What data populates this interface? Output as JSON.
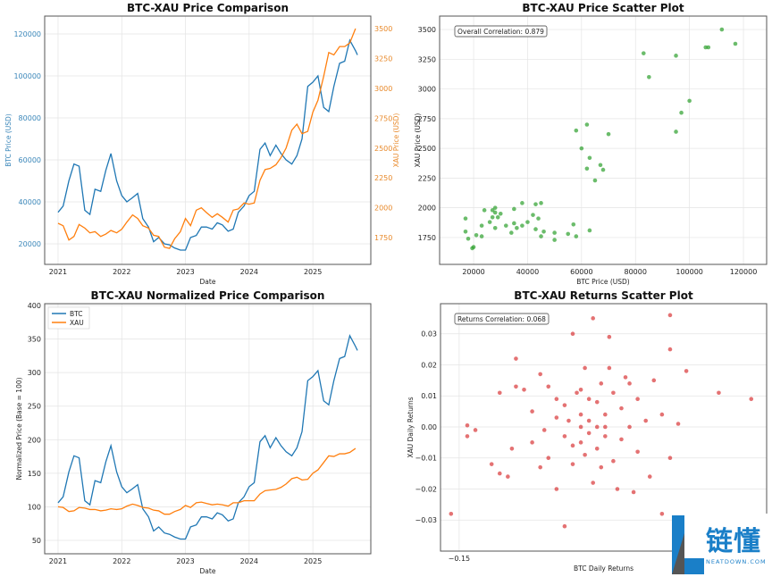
{
  "chart_data": [
    {
      "type": "line",
      "title": "BTC-XAU Price Comparison",
      "xlabel": "Date",
      "ylabel": "BTC Price (USD)",
      "y2label": "XAU Price (USD)",
      "xlim": [
        2020.79,
        2025.91
      ],
      "ylim": [
        10200,
        128500
      ],
      "y2lim": [
        1526,
        3605
      ],
      "grid": true,
      "xticks": [
        2021,
        2022,
        2023,
        2024,
        2025
      ],
      "yticks": [
        20000,
        40000,
        60000,
        80000,
        100000,
        120000
      ],
      "y2ticks": [
        1750,
        2000,
        2250,
        2500,
        2750,
        3000,
        3250,
        3500
      ],
      "colors": {
        "btc": "#1f77b4",
        "xau": "#ff7f0e"
      },
      "series": [
        {
          "key": "btc",
          "axis": "left",
          "x": [
            2021.0,
            2021.08,
            2021.17,
            2021.25,
            2021.33,
            2021.42,
            2021.5,
            2021.58,
            2021.67,
            2021.75,
            2021.83,
            2021.92,
            2022.0,
            2022.08,
            2022.17,
            2022.25,
            2022.33,
            2022.42,
            2022.5,
            2022.58,
            2022.67,
            2022.75,
            2022.83,
            2022.92,
            2023.0,
            2023.08,
            2023.17,
            2023.25,
            2023.33,
            2023.42,
            2023.5,
            2023.58,
            2023.67,
            2023.75,
            2023.83,
            2023.92,
            2024.0,
            2024.08,
            2024.17,
            2024.25,
            2024.33,
            2024.42,
            2024.5,
            2024.58,
            2024.67,
            2024.75,
            2024.83,
            2024.92,
            2025.0,
            2025.08,
            2025.17,
            2025.25,
            2025.33,
            2025.42,
            2025.5,
            2025.58,
            2025.67,
            2025.7
          ],
          "values": [
            35000,
            38000,
            50000,
            58000,
            57000,
            36000,
            34000,
            46000,
            45000,
            55000,
            63000,
            50000,
            43000,
            40000,
            42000,
            44000,
            32000,
            28000,
            21000,
            23000,
            20000,
            19500,
            18000,
            17000,
            17000,
            23000,
            24000,
            28000,
            28000,
            27000,
            30000,
            29000,
            26000,
            27000,
            35000,
            38000,
            43000,
            45000,
            65000,
            68000,
            62000,
            67000,
            63000,
            60000,
            58000,
            62000,
            70000,
            95000,
            97000,
            100000,
            85000,
            83000,
            95000,
            106000,
            107000,
            117000,
            112000,
            110000
          ]
        },
        {
          "key": "xau",
          "axis": "right",
          "x": [
            2021.0,
            2021.08,
            2021.17,
            2021.25,
            2021.33,
            2021.42,
            2021.5,
            2021.58,
            2021.67,
            2021.75,
            2021.83,
            2021.92,
            2022.0,
            2022.08,
            2022.17,
            2022.25,
            2022.33,
            2022.42,
            2022.5,
            2022.58,
            2022.67,
            2022.75,
            2022.83,
            2022.92,
            2023.0,
            2023.08,
            2023.17,
            2023.25,
            2023.33,
            2023.42,
            2023.5,
            2023.58,
            2023.67,
            2023.75,
            2023.83,
            2023.92,
            2024.0,
            2024.08,
            2024.17,
            2024.25,
            2024.33,
            2024.42,
            2024.5,
            2024.58,
            2024.67,
            2024.75,
            2024.83,
            2024.92,
            2025.0,
            2025.08,
            2025.17,
            2025.25,
            2025.33,
            2025.42,
            2025.5,
            2025.58,
            2025.67
          ],
          "values": [
            1870,
            1850,
            1730,
            1760,
            1860,
            1830,
            1790,
            1800,
            1760,
            1780,
            1810,
            1790,
            1820,
            1880,
            1940,
            1910,
            1850,
            1830,
            1770,
            1760,
            1670,
            1660,
            1740,
            1800,
            1910,
            1850,
            1980,
            2000,
            1960,
            1920,
            1950,
            1920,
            1880,
            1980,
            1990,
            2040,
            2030,
            2040,
            2230,
            2320,
            2330,
            2360,
            2420,
            2500,
            2650,
            2700,
            2620,
            2640,
            2800,
            2900,
            3100,
            3300,
            3280,
            3350,
            3350,
            3380,
            3500
          ]
        }
      ]
    },
    {
      "type": "scatter",
      "title": "BTC-XAU Price Scatter Plot",
      "xlabel": "BTC Price (USD)",
      "ylabel": "XAU Price (USD)",
      "annotation": "Overall Correlation: 0.879",
      "xlim": [
        7400,
        128600
      ],
      "ylim": [
        1524,
        3613
      ],
      "grid": true,
      "color": "#2ca02c",
      "xticks": [
        20000,
        40000,
        60000,
        80000,
        100000,
        120000
      ],
      "yticks": [
        1750,
        2000,
        2250,
        2500,
        2750,
        3000,
        3250,
        3500
      ],
      "points": [
        [
          35000,
          1870
        ],
        [
          38000,
          1850
        ],
        [
          50000,
          1730
        ],
        [
          58000,
          1760
        ],
        [
          57000,
          1860
        ],
        [
          36000,
          1830
        ],
        [
          34000,
          1790
        ],
        [
          46000,
          1800
        ],
        [
          45000,
          1760
        ],
        [
          55000,
          1780
        ],
        [
          63000,
          1810
        ],
        [
          50000,
          1790
        ],
        [
          43000,
          1820
        ],
        [
          40000,
          1880
        ],
        [
          42000,
          1940
        ],
        [
          44000,
          1910
        ],
        [
          32000,
          1850
        ],
        [
          28000,
          1830
        ],
        [
          21000,
          1770
        ],
        [
          23000,
          1760
        ],
        [
          20000,
          1670
        ],
        [
          19500,
          1660
        ],
        [
          18000,
          1740
        ],
        [
          17000,
          1800
        ],
        [
          17000,
          1910
        ],
        [
          23000,
          1850
        ],
        [
          24000,
          1980
        ],
        [
          28000,
          2000
        ],
        [
          28000,
          1960
        ],
        [
          27000,
          1920
        ],
        [
          30000,
          1950
        ],
        [
          29000,
          1920
        ],
        [
          26000,
          1880
        ],
        [
          27000,
          1980
        ],
        [
          35000,
          1990
        ],
        [
          38000,
          2040
        ],
        [
          43000,
          2030
        ],
        [
          45000,
          2040
        ],
        [
          65000,
          2230
        ],
        [
          68000,
          2320
        ],
        [
          62000,
          2330
        ],
        [
          67000,
          2360
        ],
        [
          63000,
          2420
        ],
        [
          60000,
          2500
        ],
        [
          58000,
          2650
        ],
        [
          62000,
          2700
        ],
        [
          70000,
          2620
        ],
        [
          95000,
          2640
        ],
        [
          97000,
          2800
        ],
        [
          100000,
          2900
        ],
        [
          85000,
          3100
        ],
        [
          83000,
          3300
        ],
        [
          95000,
          3280
        ],
        [
          106000,
          3350
        ],
        [
          107000,
          3350
        ],
        [
          117000,
          3380
        ],
        [
          112000,
          3500
        ]
      ]
    },
    {
      "type": "line",
      "title": "BTC-XAU Normalized Price Comparison",
      "xlabel": "Date",
      "ylabel": "Normalized Price (Base = 100)",
      "xlim": [
        2020.79,
        2025.91
      ],
      "ylim": [
        30,
        402.7
      ],
      "grid": true,
      "legend": "top-left",
      "xticks": [
        2021,
        2022,
        2023,
        2024,
        2025
      ],
      "yticks": [
        50,
        100,
        150,
        200,
        250,
        300,
        350,
        400
      ],
      "series": [
        {
          "name": "BTC",
          "color": "#1f77b4",
          "x": [
            2021.0,
            2021.08,
            2021.17,
            2021.25,
            2021.33,
            2021.42,
            2021.5,
            2021.58,
            2021.67,
            2021.75,
            2021.83,
            2021.92,
            2022.0,
            2022.08,
            2022.17,
            2022.25,
            2022.33,
            2022.42,
            2022.5,
            2022.58,
            2022.67,
            2022.75,
            2022.83,
            2022.92,
            2023.0,
            2023.08,
            2023.17,
            2023.25,
            2023.33,
            2023.42,
            2023.5,
            2023.58,
            2023.67,
            2023.75,
            2023.83,
            2023.92,
            2024.0,
            2024.08,
            2024.17,
            2024.25,
            2024.33,
            2024.42,
            2024.5,
            2024.58,
            2024.67,
            2024.75,
            2024.83,
            2024.92,
            2025.0,
            2025.08,
            2025.17,
            2025.25,
            2025.33,
            2025.42,
            2025.5,
            2025.58,
            2025.67,
            2025.7
          ],
          "values": [
            106,
            115,
            152,
            176,
            173,
            109,
            103,
            139,
            136,
            167,
            191,
            152,
            130,
            121,
            127,
            133,
            97,
            85,
            64,
            70,
            61,
            59,
            55,
            52,
            52,
            70,
            73,
            85,
            85,
            82,
            91,
            88,
            79,
            82,
            106,
            115,
            130,
            136,
            197,
            206,
            188,
            203,
            191,
            182,
            176,
            188,
            212,
            288,
            294,
            303,
            258,
            252,
            288,
            321,
            324,
            355,
            339,
            333
          ]
        },
        {
          "name": "XAU",
          "color": "#ff7f0e",
          "x": [
            2021.0,
            2021.08,
            2021.17,
            2021.25,
            2021.33,
            2021.42,
            2021.5,
            2021.58,
            2021.67,
            2021.75,
            2021.83,
            2021.92,
            2022.0,
            2022.08,
            2022.17,
            2022.25,
            2022.33,
            2022.42,
            2022.5,
            2022.58,
            2022.67,
            2022.75,
            2022.83,
            2022.92,
            2023.0,
            2023.08,
            2023.17,
            2023.25,
            2023.33,
            2023.42,
            2023.5,
            2023.58,
            2023.67,
            2023.75,
            2023.83,
            2023.92,
            2024.0,
            2024.08,
            2024.17,
            2024.25,
            2024.33,
            2024.42,
            2024.5,
            2024.58,
            2024.67,
            2024.75,
            2024.83,
            2024.92,
            2025.0,
            2025.08,
            2025.17,
            2025.25,
            2025.33,
            2025.42,
            2025.5,
            2025.58,
            2025.67
          ],
          "values": [
            100,
            99,
            93,
            94,
            99,
            98,
            96,
            96,
            94,
            95,
            97,
            96,
            97,
            101,
            104,
            102,
            99,
            98,
            95,
            94,
            89,
            89,
            93,
            96,
            102,
            99,
            106,
            107,
            105,
            103,
            104,
            103,
            101,
            106,
            106,
            109,
            109,
            109,
            119,
            124,
            125,
            126,
            129,
            134,
            142,
            144,
            140,
            141,
            150,
            155,
            166,
            176,
            175,
            179,
            179,
            181,
            187
          ]
        }
      ]
    },
    {
      "type": "scatter",
      "title": "BTC-XAU Returns Scatter Plot",
      "xlabel": "BTC Daily Returns",
      "ylabel": "XAU Daily Returns",
      "annotation": "Returns Correlation: 0.068",
      "xlim": [
        -0.173,
        0.229
      ],
      "ylim": [
        -0.04,
        0.0397
      ],
      "grid": true,
      "color": "#d62728",
      "xticks": [
        -0.15
      ],
      "yticks": [
        -0.03,
        -0.02,
        -0.01,
        0.0,
        0.01,
        0.02,
        0.03
      ],
      "points": [
        [
          -0.16,
          -0.028
        ],
        [
          -0.14,
          0.0005
        ],
        [
          -0.14,
          -0.003
        ],
        [
          -0.13,
          -0.001
        ],
        [
          -0.11,
          -0.012
        ],
        [
          -0.1,
          -0.015
        ],
        [
          -0.1,
          0.011
        ],
        [
          -0.09,
          -0.016
        ],
        [
          -0.085,
          -0.007
        ],
        [
          -0.08,
          0.022
        ],
        [
          -0.08,
          0.013
        ],
        [
          -0.07,
          0.012
        ],
        [
          -0.06,
          0.005
        ],
        [
          -0.05,
          0.017
        ],
        [
          -0.05,
          -0.013
        ],
        [
          -0.04,
          0.013
        ],
        [
          -0.04,
          -0.01
        ],
        [
          -0.03,
          -0.02
        ],
        [
          -0.03,
          0.003
        ],
        [
          -0.02,
          -0.003
        ],
        [
          -0.02,
          0.007
        ],
        [
          -0.02,
          -0.032
        ],
        [
          -0.01,
          0.03
        ],
        [
          -0.01,
          -0.006
        ],
        [
          -0.005,
          0.011
        ],
        [
          0.0,
          0.0
        ],
        [
          0.0,
          0.004
        ],
        [
          0.0,
          -0.005
        ],
        [
          0.005,
          0.019
        ],
        [
          0.005,
          -0.009
        ],
        [
          0.01,
          0.002
        ],
        [
          0.01,
          -0.002
        ],
        [
          0.015,
          0.035
        ],
        [
          0.015,
          -0.018
        ],
        [
          0.02,
          0.008
        ],
        [
          0.02,
          -0.007
        ],
        [
          0.02,
          0.0
        ],
        [
          -0.015,
          0.002
        ],
        [
          -0.01,
          -0.012
        ],
        [
          0.025,
          0.014
        ],
        [
          0.025,
          -0.013
        ],
        [
          0.03,
          0.004
        ],
        [
          0.03,
          -0.003
        ],
        [
          0.035,
          0.029
        ],
        [
          0.035,
          0.019
        ],
        [
          0.04,
          0.011
        ],
        [
          0.04,
          -0.011
        ],
        [
          0.045,
          -0.02
        ],
        [
          0.05,
          0.006
        ],
        [
          0.05,
          -0.004
        ],
        [
          0.06,
          0.014
        ],
        [
          0.06,
          0.0
        ],
        [
          0.065,
          -0.021
        ],
        [
          0.07,
          0.009
        ],
        [
          0.07,
          -0.008
        ],
        [
          0.08,
          0.002
        ],
        [
          0.085,
          -0.016
        ],
        [
          0.09,
          0.015
        ],
        [
          0.1,
          0.004
        ],
        [
          0.1,
          -0.028
        ],
        [
          0.11,
          0.036
        ],
        [
          0.11,
          0.025
        ],
        [
          0.11,
          -0.01
        ],
        [
          0.12,
          0.001
        ],
        [
          0.13,
          0.018
        ],
        [
          0.17,
          0.011
        ],
        [
          0.21,
          0.009
        ],
        [
          -0.06,
          -0.005
        ],
        [
          0.0,
          0.012
        ],
        [
          0.01,
          0.009
        ],
        [
          -0.03,
          0.009
        ],
        [
          0.03,
          0.0
        ],
        [
          -0.045,
          -0.001
        ],
        [
          0.055,
          0.016
        ]
      ]
    }
  ],
  "watermark": {
    "cn": "链懂",
    "en": "NEATDOWN.COM"
  }
}
